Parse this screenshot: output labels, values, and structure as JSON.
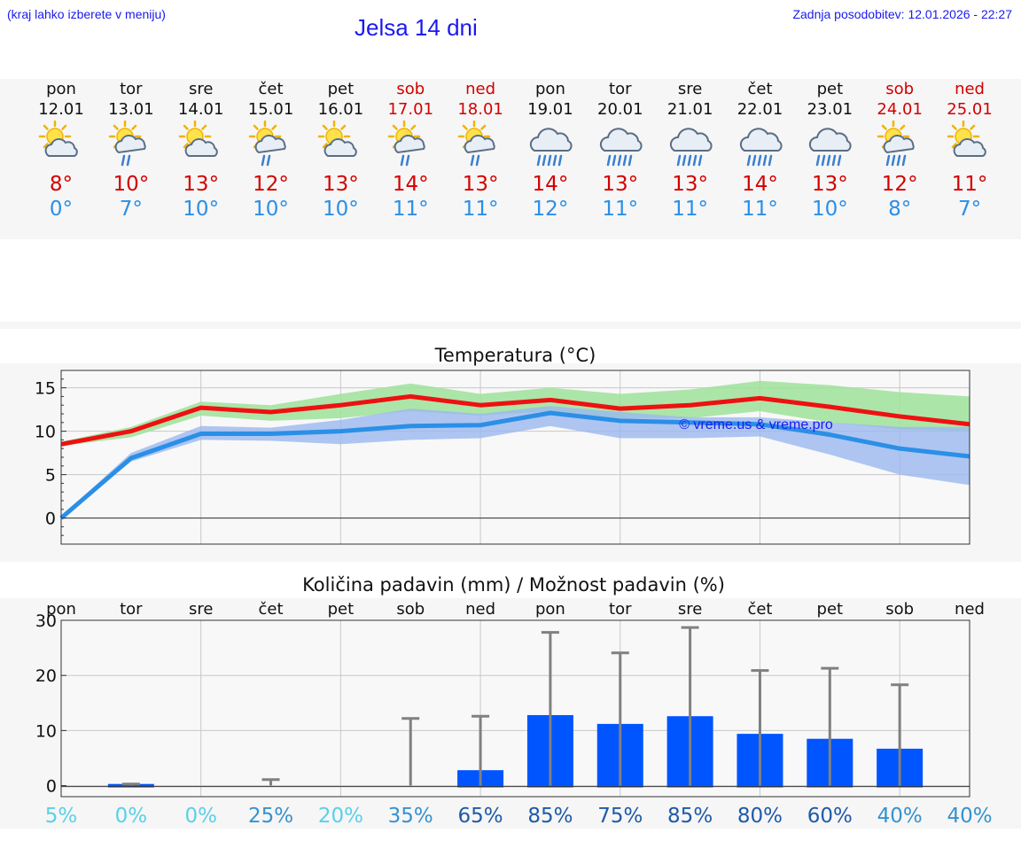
{
  "header": {
    "hint": "(kraj lahko izberete v meniju)",
    "title": "Jelsa 14 dni",
    "updated": "Zadnja posodobitev: 12.01.2026 - 22:27"
  },
  "days": [
    {
      "name": "pon",
      "date": "12.01",
      "weekend": false,
      "icon": "sun-cloud-icon",
      "max": "8°",
      "min": "0°"
    },
    {
      "name": "tor",
      "date": "13.01",
      "weekend": false,
      "icon": "sun-cloud-rain-icon",
      "max": "10°",
      "min": "7°"
    },
    {
      "name": "sre",
      "date": "14.01",
      "weekend": false,
      "icon": "sun-cloud-icon",
      "max": "13°",
      "min": "10°"
    },
    {
      "name": "čet",
      "date": "15.01",
      "weekend": false,
      "icon": "sun-cloud-rain-icon",
      "max": "12°",
      "min": "10°"
    },
    {
      "name": "pet",
      "date": "16.01",
      "weekend": false,
      "icon": "sun-cloud-icon",
      "max": "13°",
      "min": "10°"
    },
    {
      "name": "sob",
      "date": "17.01",
      "weekend": true,
      "icon": "sun-cloud-rain-icon",
      "max": "14°",
      "min": "11°"
    },
    {
      "name": "ned",
      "date": "18.01",
      "weekend": true,
      "icon": "sun-cloud-rain-icon",
      "max": "13°",
      "min": "11°"
    },
    {
      "name": "pon",
      "date": "19.01",
      "weekend": false,
      "icon": "cloud-heavy-rain-icon",
      "max": "14°",
      "min": "12°"
    },
    {
      "name": "tor",
      "date": "20.01",
      "weekend": false,
      "icon": "cloud-heavy-rain-icon",
      "max": "13°",
      "min": "11°"
    },
    {
      "name": "sre",
      "date": "21.01",
      "weekend": false,
      "icon": "cloud-heavy-rain-icon",
      "max": "13°",
      "min": "11°"
    },
    {
      "name": "čet",
      "date": "22.01",
      "weekend": false,
      "icon": "cloud-heavy-rain-icon",
      "max": "14°",
      "min": "11°"
    },
    {
      "name": "pet",
      "date": "23.01",
      "weekend": false,
      "icon": "cloud-heavy-rain-icon",
      "max": "13°",
      "min": "10°"
    },
    {
      "name": "sob",
      "date": "24.01",
      "weekend": true,
      "icon": "sun-cloud-heavy-rain-icon",
      "max": "12°",
      "min": "8°"
    },
    {
      "name": "ned",
      "date": "25.01",
      "weekend": true,
      "icon": "sun-cloud-icon",
      "max": "11°",
      "min": "7°"
    }
  ],
  "colors": {
    "max_line": "#ee1111",
    "min_line": "#2b8fe6",
    "max_band": "#9fe29a",
    "min_band": "#9bb8f0",
    "bar": "#0055ff",
    "error_bar": "#808080",
    "watermark": "#1a1aee"
  },
  "chart_data": [
    {
      "type": "line",
      "title": "Temperatura (°C)",
      "watermark": "© vreme.us & vreme.pro",
      "ylim": [
        -3,
        17
      ],
      "yticks": [
        0,
        5,
        10,
        15
      ],
      "x": [
        0,
        1,
        2,
        3,
        4,
        5,
        6,
        7,
        8,
        9,
        10,
        11,
        12,
        13
      ],
      "series": [
        {
          "name": "max",
          "values": [
            8.5,
            10,
            12.7,
            12.2,
            13,
            14,
            13,
            13.6,
            12.6,
            13,
            13.8,
            12.8,
            11.7,
            10.8
          ],
          "band_low": [
            8.3,
            9.3,
            11.8,
            11.2,
            11.5,
            12.3,
            11.8,
            12.3,
            11.5,
            11.5,
            12.3,
            11.0,
            10.2,
            10.0
          ],
          "band_high": [
            8.8,
            10.5,
            13.4,
            13.0,
            14.3,
            15.5,
            14.3,
            15.0,
            14.3,
            14.8,
            15.8,
            15.3,
            14.5,
            14.0
          ]
        },
        {
          "name": "min",
          "values": [
            0,
            6.9,
            9.7,
            9.7,
            10,
            10.6,
            10.7,
            12.1,
            11.2,
            11,
            10.8,
            9.6,
            8,
            7.1
          ],
          "band_low": [
            0,
            6.5,
            9.0,
            8.9,
            8.5,
            9.0,
            9.2,
            10.6,
            9.2,
            9.2,
            9.4,
            7.3,
            5.0,
            3.8
          ],
          "band_high": [
            0.2,
            7.5,
            10.6,
            10.4,
            11.3,
            12.6,
            12.0,
            12.9,
            12.2,
            11.6,
            11.6,
            11.0,
            10.5,
            10.5
          ]
        }
      ]
    },
    {
      "type": "bar",
      "title": "Količina padavin (mm) / Možnost padavin (%)",
      "ylim": [
        -2,
        30
      ],
      "yticks": [
        0,
        10,
        20,
        30
      ],
      "categories": [
        "pon",
        "tor",
        "sre",
        "čet",
        "pet",
        "sob",
        "ned",
        "pon",
        "tor",
        "sre",
        "čet",
        "pet",
        "sob",
        "ned"
      ],
      "values": [
        0,
        0.3,
        0,
        0,
        0,
        0,
        2.8,
        12.8,
        11.2,
        12.6,
        9.4,
        8.5,
        6.7,
        0
      ],
      "error_high": [
        0,
        0.3,
        0,
        1.1,
        0,
        12.2,
        12.6,
        27.8,
        24.1,
        28.7,
        20.9,
        21.3,
        18.3,
        0
      ],
      "probability": [
        "5%",
        "0%",
        "0%",
        "25%",
        "20%",
        "35%",
        "65%",
        "85%",
        "75%",
        "85%",
        "80%",
        "60%",
        "40%",
        "40%"
      ]
    }
  ]
}
